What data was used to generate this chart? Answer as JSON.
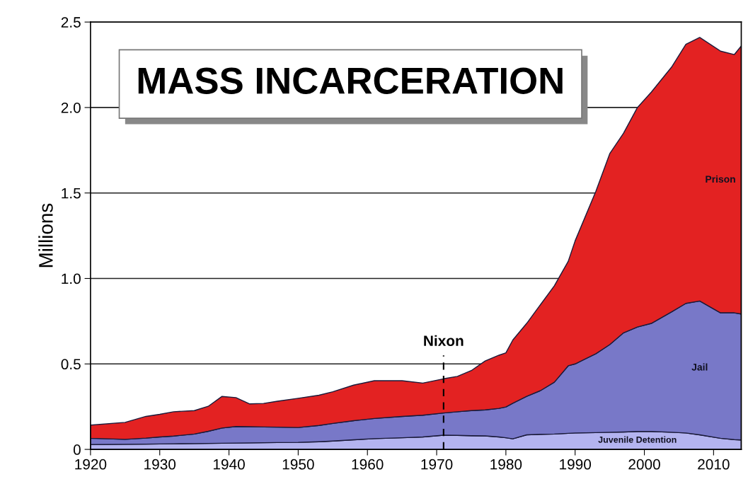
{
  "chart_data": {
    "type": "area",
    "title": "MASS INCARCERATION",
    "ylabel": "Millions",
    "stacked": true,
    "x": [
      1920,
      1925,
      1928,
      1930,
      1932,
      1935,
      1937,
      1939,
      1941,
      1943,
      1945,
      1947,
      1950,
      1953,
      1955,
      1958,
      1961,
      1965,
      1968,
      1971,
      1973,
      1975,
      1977,
      1979,
      1980,
      1981,
      1983,
      1985,
      1987,
      1989,
      1990,
      1993,
      1995,
      1997,
      1999,
      2001,
      2004,
      2006,
      2008,
      2011,
      2013,
      2014
    ],
    "series": [
      {
        "name": "Juvenile Detention",
        "color": "#b4b4f0",
        "values": [
          0.028,
          0.03,
          0.031,
          0.032,
          0.033,
          0.034,
          0.035,
          0.036,
          0.037,
          0.038,
          0.039,
          0.04,
          0.041,
          0.045,
          0.049,
          0.056,
          0.063,
          0.068,
          0.073,
          0.083,
          0.082,
          0.08,
          0.079,
          0.073,
          0.068,
          0.062,
          0.085,
          0.088,
          0.09,
          0.094,
          0.096,
          0.098,
          0.1,
          0.102,
          0.105,
          0.105,
          0.1,
          0.096,
          0.085,
          0.065,
          0.057,
          0.055
        ]
      },
      {
        "name": "Jail",
        "color": "#7878c8",
        "values": [
          0.037,
          0.029,
          0.035,
          0.041,
          0.045,
          0.056,
          0.071,
          0.089,
          0.097,
          0.095,
          0.092,
          0.09,
          0.087,
          0.095,
          0.103,
          0.112,
          0.118,
          0.125,
          0.127,
          0.13,
          0.138,
          0.147,
          0.152,
          0.167,
          0.18,
          0.208,
          0.225,
          0.256,
          0.303,
          0.395,
          0.404,
          0.462,
          0.513,
          0.58,
          0.611,
          0.632,
          0.706,
          0.758,
          0.783,
          0.734,
          0.742,
          0.737
        ]
      },
      {
        "name": "Prison",
        "color": "#e32222",
        "values": [
          0.077,
          0.099,
          0.127,
          0.132,
          0.142,
          0.137,
          0.146,
          0.185,
          0.169,
          0.133,
          0.138,
          0.152,
          0.171,
          0.177,
          0.185,
          0.208,
          0.221,
          0.209,
          0.188,
          0.2,
          0.207,
          0.234,
          0.286,
          0.311,
          0.317,
          0.37,
          0.427,
          0.503,
          0.564,
          0.611,
          0.72,
          0.95,
          1.117,
          1.168,
          1.284,
          1.353,
          1.434,
          1.516,
          1.542,
          1.531,
          1.511,
          1.568
        ]
      }
    ],
    "xlim": [
      1920,
      2014
    ],
    "xticks": [
      1920,
      1930,
      1940,
      1950,
      1960,
      1970,
      1980,
      1990,
      2000,
      2010
    ],
    "ylim": [
      0,
      2.5
    ],
    "yticks": [
      0,
      {
        "value": 0.5,
        "label": "0.5"
      },
      {
        "value": 1.0,
        "label": "1.0"
      },
      {
        "value": 1.5,
        "label": "1.5"
      },
      {
        "value": 2.0,
        "label": "2.0"
      },
      {
        "value": 2.5,
        "label": "2.5"
      }
    ],
    "grid": "y",
    "ref_lines": [
      {
        "axis": "x",
        "value": 1971,
        "label": "Nixon",
        "line_style": "dashed",
        "color": "#000000"
      }
    ]
  }
}
